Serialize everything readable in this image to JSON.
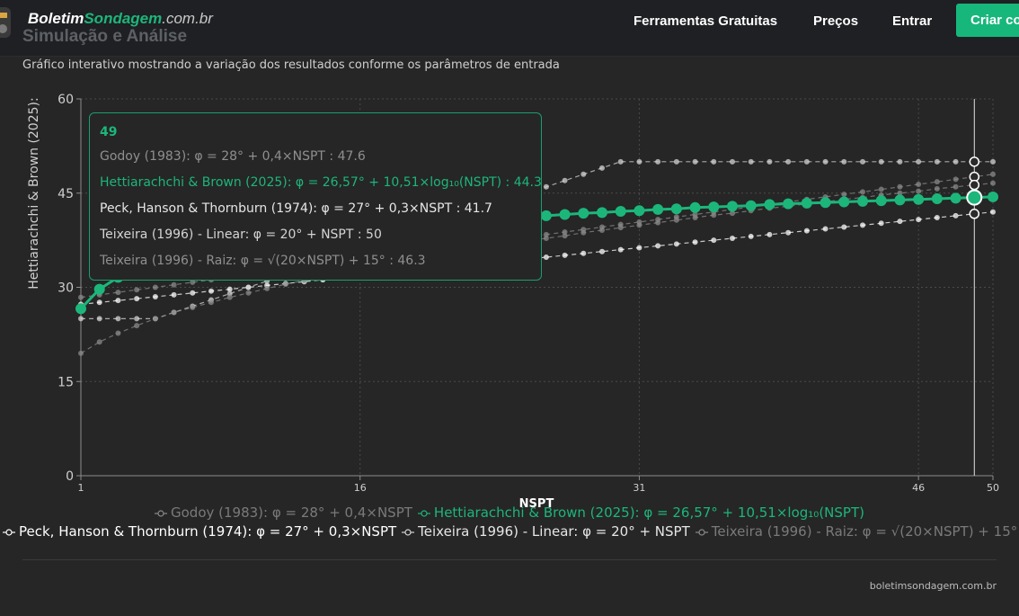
{
  "nav": {
    "brand_main": "Boletim",
    "brand_accent": "Sondagem",
    "brand_suffix": ".com.br",
    "section_title": "Simulação e Análise",
    "links": [
      "Ferramentas Gratuitas",
      "Preços",
      "Entrar"
    ],
    "cta_label": "Criar co"
  },
  "card": {
    "subtitle": "Gráfico interativo mostrando a variação dos resultados conforme os parâmetros de entrada",
    "footer_credit": "boletimsondagem.com.br"
  },
  "colors": {
    "accent": "#1cb67b",
    "series_white": "#ffffff",
    "series_grey": "#9a9a9a",
    "axis": "#8c8c8c"
  },
  "tooltip": {
    "x_label": "49",
    "rows": [
      {
        "text": "Godoy (1983): φ = 28° + 0,4×NSPT : 47.6",
        "color": "#8f8f8f"
      },
      {
        "text": "Hettiarachchi & Brown (2025): φ = 26,57° + 10,51×log₁₀(NSPT) : 44.3",
        "color": "#1cb67b"
      },
      {
        "text": "Peck, Hanson & Thornburn (1974): φ = 27° + 0,3×NSPT : 41.7",
        "color": "#e6e6e6"
      },
      {
        "text": "Teixeira (1996) - Linear: φ = 20° + NSPT : 50",
        "color": "#d4d4d4"
      },
      {
        "text": "Teixeira (1996) - Raiz: φ = √(20×NSPT) + 15° : 46.3",
        "color": "#8f8f8f"
      }
    ]
  },
  "chart_data": {
    "type": "line",
    "xlabel": "NSPT",
    "ylabel": "Hettiarachchi & Brown (2025):",
    "xlim": [
      1,
      50
    ],
    "ylim": [
      0,
      60
    ],
    "x_ticks": [
      1,
      16,
      31,
      46,
      50
    ],
    "y_ticks": [
      0,
      15,
      30,
      45,
      60
    ],
    "grid": true,
    "hover_x": 49,
    "legend_position": "bottom",
    "x": [
      1,
      2,
      3,
      4,
      5,
      6,
      7,
      8,
      9,
      10,
      11,
      12,
      13,
      14,
      15,
      16,
      17,
      18,
      19,
      20,
      21,
      22,
      23,
      24,
      25,
      26,
      27,
      28,
      29,
      30,
      31,
      32,
      33,
      34,
      35,
      36,
      37,
      38,
      39,
      40,
      41,
      42,
      43,
      44,
      45,
      46,
      47,
      48,
      49,
      50
    ],
    "series": [
      {
        "name": "Godoy (1983): φ = 28° + 0,4×NSPT",
        "color": "#8a8a8a",
        "highlight": false,
        "values": [
          28.4,
          28.8,
          29.2,
          29.6,
          30.0,
          30.4,
          30.8,
          31.2,
          31.6,
          32.0,
          32.4,
          32.8,
          33.2,
          33.6,
          34.0,
          34.4,
          34.8,
          35.2,
          35.6,
          36.0,
          36.4,
          36.8,
          37.2,
          37.6,
          38.0,
          38.4,
          38.8,
          39.2,
          39.6,
          40.0,
          40.4,
          40.8,
          41.2,
          41.6,
          42.0,
          42.4,
          42.8,
          43.2,
          43.6,
          44.0,
          44.4,
          44.8,
          45.2,
          45.6,
          46.0,
          46.4,
          46.8,
          47.2,
          47.6,
          48.0
        ]
      },
      {
        "name": "Hettiarachchi & Brown (2025): φ = 26,57° + 10,51×log₁₀(NSPT)",
        "color": "#1cb67b",
        "highlight": true,
        "values": [
          26.6,
          29.7,
          31.6,
          32.9,
          33.9,
          34.7,
          35.5,
          36.1,
          36.6,
          37.1,
          37.5,
          37.9,
          38.3,
          38.6,
          38.9,
          39.2,
          39.5,
          39.8,
          40.0,
          40.2,
          40.5,
          40.7,
          40.9,
          41.1,
          41.3,
          41.4,
          41.6,
          41.8,
          41.9,
          42.1,
          42.2,
          42.4,
          42.5,
          42.7,
          42.8,
          42.9,
          43.0,
          43.2,
          43.3,
          43.4,
          43.5,
          43.6,
          43.7,
          43.8,
          43.9,
          44.0,
          44.1,
          44.2,
          44.3,
          44.4
        ]
      },
      {
        "name": "Peck, Hanson & Thornburn (1974): φ = 27° + 0,3×NSPT",
        "color": "#ffffff",
        "highlight": false,
        "values": [
          27.3,
          27.6,
          27.9,
          28.2,
          28.5,
          28.8,
          29.1,
          29.4,
          29.7,
          30.0,
          30.3,
          30.6,
          30.9,
          31.2,
          31.5,
          31.8,
          32.1,
          32.4,
          32.7,
          33.0,
          33.3,
          33.6,
          33.9,
          34.2,
          34.5,
          34.8,
          35.1,
          35.4,
          35.7,
          36.0,
          36.3,
          36.6,
          36.9,
          37.2,
          37.5,
          37.8,
          38.1,
          38.4,
          38.7,
          39.0,
          39.3,
          39.6,
          39.9,
          40.2,
          40.5,
          40.8,
          41.1,
          41.4,
          41.7,
          42.0
        ]
      },
      {
        "name": "Teixeira (1996) - Linear: φ = 20° + NSPT",
        "color": "#d4d4d4",
        "highlight": false,
        "values": [
          25,
          25,
          25,
          25,
          25,
          26,
          27,
          28,
          29,
          30,
          31,
          32,
          33,
          34,
          35,
          36,
          37,
          38,
          39,
          40,
          41,
          42,
          43,
          44,
          45,
          46,
          47,
          48,
          49,
          50,
          50,
          50,
          50,
          50,
          50,
          50,
          50,
          50,
          50,
          50,
          50,
          50,
          50,
          50,
          50,
          50,
          50,
          50,
          50,
          50
        ]
      },
      {
        "name": "Teixeira (1996) - Raiz: φ = √(20×NSPT) + 15°",
        "color": "#8a8a8a",
        "highlight": false,
        "values": [
          19.5,
          21.3,
          22.7,
          23.9,
          25.0,
          26.0,
          26.8,
          27.6,
          28.4,
          29.1,
          29.8,
          30.5,
          31.1,
          31.7,
          32.3,
          32.9,
          33.4,
          34.0,
          34.5,
          35.0,
          35.5,
          36.0,
          36.4,
          36.9,
          37.4,
          37.8,
          38.2,
          38.7,
          39.1,
          39.5,
          39.9,
          40.3,
          40.7,
          41.1,
          41.5,
          41.8,
          42.2,
          42.6,
          42.9,
          43.3,
          43.6,
          44.0,
          44.3,
          44.7,
          45.0,
          45.3,
          45.7,
          46.0,
          46.3,
          46.6
        ]
      }
    ]
  }
}
